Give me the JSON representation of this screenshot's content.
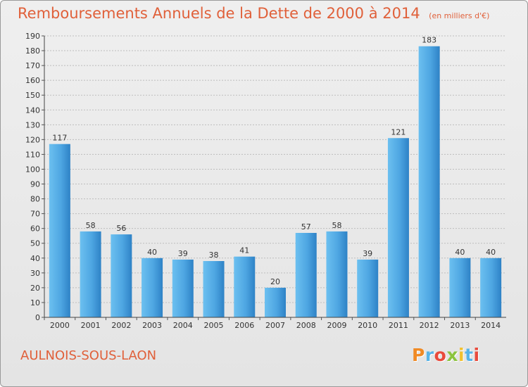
{
  "header": {
    "title": "Remboursements Annuels de la Dette de 2000 à 2014",
    "unit": "(en milliers d'€)"
  },
  "footer": {
    "city": "AULNOIS-SOUS-LAON",
    "logo": "Proxiti"
  },
  "colors": {
    "title": "#e0603a",
    "bar_light": "#5db4ea",
    "bar_dark": "#2e82c6",
    "grid": "#bdbdbd",
    "axis_text": "#333333",
    "logo": [
      "#f08a24",
      "#58b4e8",
      "#e94a3c",
      "#8cc43f",
      "#f2c12e",
      "#58b4e8",
      "#e94a3c"
    ]
  },
  "chart_data": {
    "type": "bar",
    "title": "Remboursements Annuels de la Dette de 2000 à 2014",
    "subtitle": "(en milliers d'€)",
    "xlabel": "",
    "ylabel": "",
    "categories": [
      "2000",
      "2001",
      "2002",
      "2003",
      "2004",
      "2005",
      "2006",
      "2007",
      "2008",
      "2009",
      "2010",
      "2011",
      "2012",
      "2013",
      "2014"
    ],
    "values": [
      117,
      58,
      56,
      40,
      39,
      38,
      41,
      20,
      57,
      58,
      39,
      121,
      183,
      40,
      40
    ],
    "ylim": [
      0,
      190
    ],
    "ytick_step": 10,
    "grid": true,
    "legend": "none"
  }
}
